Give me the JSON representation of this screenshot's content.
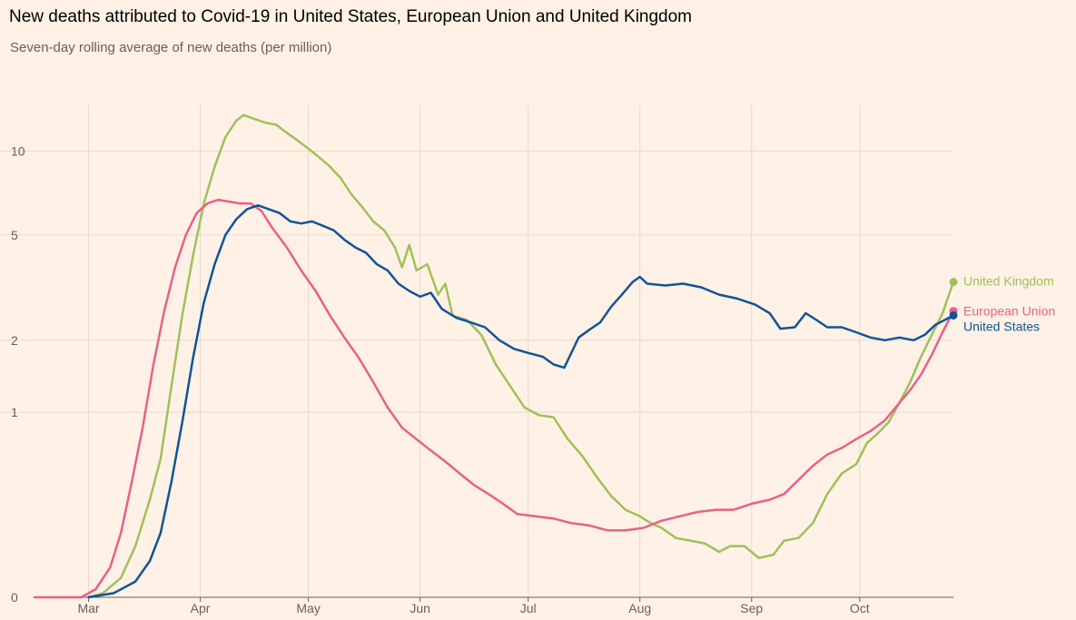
{
  "title": "New deaths attributed to Covid-19 in United States, European Union and United Kingdom",
  "subtitle": "Seven-day rolling average of new deaths (per million)",
  "chart_data": {
    "type": "line",
    "title": "New deaths attributed to Covid-19 in United States, European Union and United Kingdom",
    "subtitle": "Seven-day rolling average of new deaths (per million)",
    "xlabel": "",
    "ylabel": "",
    "y_scale": "log",
    "y_ticks": [
      0,
      1,
      2,
      5,
      10
    ],
    "y_tick_labels": [
      "0",
      "1",
      "2",
      "5",
      "10"
    ],
    "x_ticks": [
      "Mar",
      "Apr",
      "May",
      "Jun",
      "Jul",
      "Aug",
      "Sep",
      "Oct"
    ],
    "x_range": [
      "2020-02-15",
      "2020-10-27"
    ],
    "grid": true,
    "legend": "end-of-line labels",
    "series": [
      {
        "name": "United Kingdom",
        "color": "#A0C05A",
        "points": [
          [
            "2020-03-01",
            0
          ],
          [
            "2020-03-05",
            0.01
          ],
          [
            "2020-03-10",
            0.05
          ],
          [
            "2020-03-14",
            0.15
          ],
          [
            "2020-03-18",
            0.35
          ],
          [
            "2020-03-21",
            0.6
          ],
          [
            "2020-03-24",
            1.3
          ],
          [
            "2020-03-27",
            2.5
          ],
          [
            "2020-03-30",
            4.2
          ],
          [
            "2020-04-02",
            6.5
          ],
          [
            "2020-04-05",
            8.8
          ],
          [
            "2020-04-08",
            11.2
          ],
          [
            "2020-04-11",
            12.8
          ],
          [
            "2020-04-13",
            13.4
          ],
          [
            "2020-04-16",
            13.0
          ],
          [
            "2020-04-19",
            12.6
          ],
          [
            "2020-04-22",
            12.4
          ],
          [
            "2020-04-25",
            11.6
          ],
          [
            "2020-04-28",
            10.9
          ],
          [
            "2020-05-01",
            10.2
          ],
          [
            "2020-05-04",
            9.5
          ],
          [
            "2020-05-07",
            8.8
          ],
          [
            "2020-05-10",
            8.0
          ],
          [
            "2020-05-13",
            7.0
          ],
          [
            "2020-05-16",
            6.3
          ],
          [
            "2020-05-19",
            5.6
          ],
          [
            "2020-05-22",
            5.2
          ],
          [
            "2020-05-25",
            4.5
          ],
          [
            "2020-05-27",
            3.8
          ],
          [
            "2020-05-29",
            4.6
          ],
          [
            "2020-05-31",
            3.7
          ],
          [
            "2020-06-03",
            3.9
          ],
          [
            "2020-06-06",
            3.0
          ],
          [
            "2020-06-08",
            3.3
          ],
          [
            "2020-06-10",
            2.5
          ],
          [
            "2020-06-14",
            2.4
          ],
          [
            "2020-06-18",
            2.1
          ],
          [
            "2020-06-22",
            1.6
          ],
          [
            "2020-06-26",
            1.3
          ],
          [
            "2020-06-30",
            1.05
          ],
          [
            "2020-07-04",
            0.97
          ],
          [
            "2020-07-08",
            0.95
          ],
          [
            "2020-07-12",
            0.75
          ],
          [
            "2020-07-16",
            0.62
          ],
          [
            "2020-07-20",
            0.48
          ],
          [
            "2020-07-24",
            0.37
          ],
          [
            "2020-07-28",
            0.3
          ],
          [
            "2020-08-01",
            0.27
          ],
          [
            "2020-08-04",
            0.24
          ],
          [
            "2020-08-07",
            0.22
          ],
          [
            "2020-08-11",
            0.18
          ],
          [
            "2020-08-15",
            0.17
          ],
          [
            "2020-08-19",
            0.16
          ],
          [
            "2020-08-23",
            0.13
          ],
          [
            "2020-08-26",
            0.15
          ],
          [
            "2020-08-30",
            0.15
          ],
          [
            "2020-09-03",
            0.11
          ],
          [
            "2020-09-07",
            0.12
          ],
          [
            "2020-09-10",
            0.17
          ],
          [
            "2020-09-14",
            0.18
          ],
          [
            "2020-09-18",
            0.24
          ],
          [
            "2020-09-22",
            0.38
          ],
          [
            "2020-09-26",
            0.5
          ],
          [
            "2020-09-30",
            0.56
          ],
          [
            "2020-10-03",
            0.72
          ],
          [
            "2020-10-06",
            0.8
          ],
          [
            "2020-10-09",
            0.9
          ],
          [
            "2020-10-12",
            1.1
          ],
          [
            "2020-10-15",
            1.35
          ],
          [
            "2020-10-18",
            1.72
          ],
          [
            "2020-10-21",
            2.1
          ],
          [
            "2020-10-24",
            2.55
          ],
          [
            "2020-10-27",
            3.35
          ]
        ]
      },
      {
        "name": "European Union",
        "color": "#E8608A",
        "points": [
          [
            "2020-02-15",
            0
          ],
          [
            "2020-02-28",
            0
          ],
          [
            "2020-03-03",
            0.02
          ],
          [
            "2020-03-07",
            0.08
          ],
          [
            "2020-03-10",
            0.2
          ],
          [
            "2020-03-13",
            0.45
          ],
          [
            "2020-03-16",
            0.85
          ],
          [
            "2020-03-19",
            1.6
          ],
          [
            "2020-03-22",
            2.6
          ],
          [
            "2020-03-25",
            3.8
          ],
          [
            "2020-03-28",
            5.0
          ],
          [
            "2020-03-31",
            6.0
          ],
          [
            "2020-04-03",
            6.5
          ],
          [
            "2020-04-06",
            6.7
          ],
          [
            "2020-04-09",
            6.6
          ],
          [
            "2020-04-12",
            6.5
          ],
          [
            "2020-04-15",
            6.5
          ],
          [
            "2020-04-18",
            6.1
          ],
          [
            "2020-04-21",
            5.3
          ],
          [
            "2020-04-25",
            4.5
          ],
          [
            "2020-04-29",
            3.7
          ],
          [
            "2020-05-03",
            3.1
          ],
          [
            "2020-05-07",
            2.5
          ],
          [
            "2020-05-11",
            2.05
          ],
          [
            "2020-05-15",
            1.7
          ],
          [
            "2020-05-19",
            1.35
          ],
          [
            "2020-05-23",
            1.05
          ],
          [
            "2020-05-27",
            0.85
          ],
          [
            "2020-05-31",
            0.75
          ],
          [
            "2020-06-04",
            0.66
          ],
          [
            "2020-06-08",
            0.58
          ],
          [
            "2020-06-12",
            0.5
          ],
          [
            "2020-06-16",
            0.43
          ],
          [
            "2020-06-20",
            0.38
          ],
          [
            "2020-06-24",
            0.33
          ],
          [
            "2020-06-28",
            0.28
          ],
          [
            "2020-07-03",
            0.27
          ],
          [
            "2020-07-08",
            0.26
          ],
          [
            "2020-07-13",
            0.24
          ],
          [
            "2020-07-18",
            0.23
          ],
          [
            "2020-07-23",
            0.21
          ],
          [
            "2020-07-28",
            0.21
          ],
          [
            "2020-08-02",
            0.22
          ],
          [
            "2020-08-07",
            0.25
          ],
          [
            "2020-08-12",
            0.27
          ],
          [
            "2020-08-17",
            0.29
          ],
          [
            "2020-08-22",
            0.3
          ],
          [
            "2020-08-27",
            0.3
          ],
          [
            "2020-09-01",
            0.33
          ],
          [
            "2020-09-06",
            0.35
          ],
          [
            "2020-09-10",
            0.38
          ],
          [
            "2020-09-14",
            0.46
          ],
          [
            "2020-09-18",
            0.55
          ],
          [
            "2020-09-22",
            0.63
          ],
          [
            "2020-09-26",
            0.68
          ],
          [
            "2020-09-30",
            0.75
          ],
          [
            "2020-10-04",
            0.82
          ],
          [
            "2020-10-08",
            0.92
          ],
          [
            "2020-10-12",
            1.1
          ],
          [
            "2020-10-15",
            1.25
          ],
          [
            "2020-10-18",
            1.45
          ],
          [
            "2020-10-21",
            1.75
          ],
          [
            "2020-10-24",
            2.15
          ],
          [
            "2020-10-27",
            2.6
          ]
        ]
      },
      {
        "name": "United States",
        "color": "#0F5499",
        "points": [
          [
            "2020-03-01",
            0
          ],
          [
            "2020-03-08",
            0.01
          ],
          [
            "2020-03-14",
            0.04
          ],
          [
            "2020-03-18",
            0.1
          ],
          [
            "2020-03-21",
            0.2
          ],
          [
            "2020-03-24",
            0.45
          ],
          [
            "2020-03-27",
            0.9
          ],
          [
            "2020-03-30",
            1.7
          ],
          [
            "2020-04-02",
            2.8
          ],
          [
            "2020-04-05",
            3.9
          ],
          [
            "2020-04-08",
            5.0
          ],
          [
            "2020-04-11",
            5.7
          ],
          [
            "2020-04-14",
            6.2
          ],
          [
            "2020-04-17",
            6.4
          ],
          [
            "2020-04-20",
            6.2
          ],
          [
            "2020-04-23",
            6.0
          ],
          [
            "2020-04-26",
            5.6
          ],
          [
            "2020-04-29",
            5.5
          ],
          [
            "2020-05-02",
            5.6
          ],
          [
            "2020-05-05",
            5.4
          ],
          [
            "2020-05-08",
            5.2
          ],
          [
            "2020-05-11",
            4.8
          ],
          [
            "2020-05-14",
            4.5
          ],
          [
            "2020-05-17",
            4.3
          ],
          [
            "2020-05-20",
            3.9
          ],
          [
            "2020-05-23",
            3.7
          ],
          [
            "2020-05-26",
            3.3
          ],
          [
            "2020-05-29",
            3.1
          ],
          [
            "2020-06-01",
            2.95
          ],
          [
            "2020-06-04",
            3.05
          ],
          [
            "2020-06-07",
            2.65
          ],
          [
            "2020-06-11",
            2.45
          ],
          [
            "2020-06-15",
            2.35
          ],
          [
            "2020-06-19",
            2.25
          ],
          [
            "2020-06-23",
            2.0
          ],
          [
            "2020-06-27",
            1.85
          ],
          [
            "2020-07-01",
            1.78
          ],
          [
            "2020-07-05",
            1.72
          ],
          [
            "2020-07-08",
            1.6
          ],
          [
            "2020-07-11",
            1.55
          ],
          [
            "2020-07-15",
            2.05
          ],
          [
            "2020-07-18",
            2.2
          ],
          [
            "2020-07-21",
            2.35
          ],
          [
            "2020-07-24",
            2.7
          ],
          [
            "2020-07-27",
            3.0
          ],
          [
            "2020-07-30",
            3.35
          ],
          [
            "2020-08-01",
            3.5
          ],
          [
            "2020-08-03",
            3.3
          ],
          [
            "2020-08-08",
            3.25
          ],
          [
            "2020-08-13",
            3.3
          ],
          [
            "2020-08-18",
            3.2
          ],
          [
            "2020-08-23",
            3.0
          ],
          [
            "2020-08-28",
            2.9
          ],
          [
            "2020-09-02",
            2.75
          ],
          [
            "2020-09-06",
            2.55
          ],
          [
            "2020-09-09",
            2.22
          ],
          [
            "2020-09-13",
            2.25
          ],
          [
            "2020-09-16",
            2.55
          ],
          [
            "2020-09-19",
            2.4
          ],
          [
            "2020-09-22",
            2.25
          ],
          [
            "2020-09-26",
            2.25
          ],
          [
            "2020-09-30",
            2.15
          ],
          [
            "2020-10-04",
            2.05
          ],
          [
            "2020-10-08",
            2.0
          ],
          [
            "2020-10-12",
            2.05
          ],
          [
            "2020-10-16",
            2.0
          ],
          [
            "2020-10-19",
            2.1
          ],
          [
            "2020-10-22",
            2.3
          ],
          [
            "2020-10-27",
            2.5
          ]
        ]
      }
    ]
  }
}
